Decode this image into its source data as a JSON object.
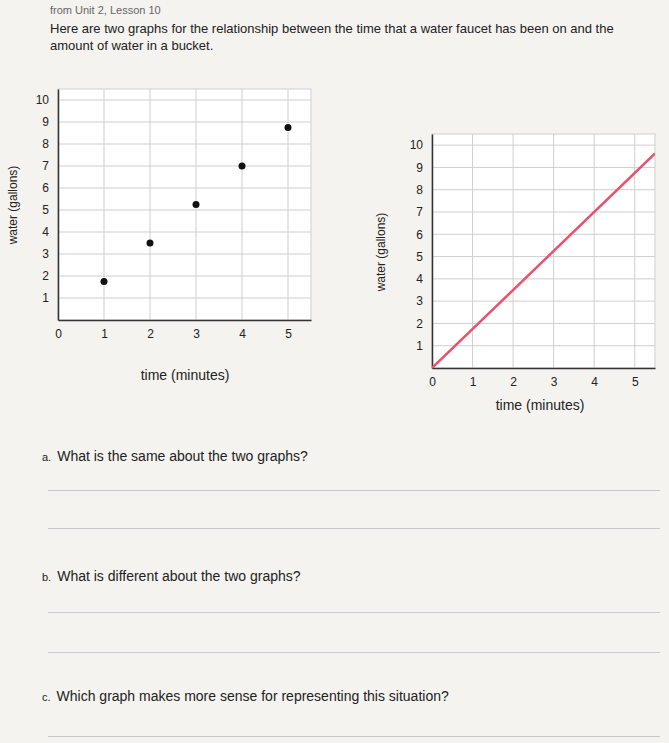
{
  "header": {
    "source": "from Unit 2, Lesson 10",
    "intro": "Here are two graphs for the relationship between the time that a water faucet has been on and the amount of water in a bucket."
  },
  "chart_data": [
    {
      "type": "scatter",
      "x_label": "time (minutes)",
      "y_label": "water (gallons)",
      "x": [
        1,
        2,
        3,
        4,
        5
      ],
      "series": [
        {
          "color": "#111111",
          "marker": "circle",
          "values": [
            1.75,
            3.5,
            5.25,
            7,
            8.75
          ]
        }
      ],
      "xlim": [
        0,
        5.5
      ],
      "ylim": [
        0,
        10.5
      ],
      "xticks": [
        0,
        1,
        2,
        3,
        4,
        5
      ],
      "yticks": [
        1,
        2,
        3,
        4,
        5,
        6,
        7,
        8,
        9,
        10
      ],
      "grid": true
    },
    {
      "type": "line",
      "x_label": "time (minutes)",
      "y_label": "water (gallons)",
      "x": [
        0,
        5.5
      ],
      "series": [
        {
          "color": "#e8536a",
          "line_style": "solid",
          "values": [
            0,
            9.625
          ]
        }
      ],
      "xlim": [
        0,
        5.5
      ],
      "ylim": [
        0,
        10.5
      ],
      "xticks": [
        0,
        1,
        2,
        3,
        4,
        5
      ],
      "yticks": [
        1,
        2,
        3,
        4,
        5,
        6,
        7,
        8,
        9,
        10
      ],
      "grid": true
    }
  ],
  "questions": [
    {
      "label": "a.",
      "text": "What is the same about the two graphs?"
    },
    {
      "label": "b.",
      "text": "What is different about the two graphs?"
    },
    {
      "label": "c.",
      "text": "Which graph makes more sense for representing this situation?"
    }
  ]
}
